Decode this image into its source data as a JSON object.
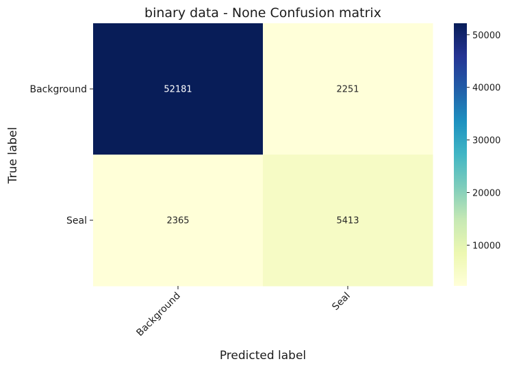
{
  "chart_data": {
    "type": "heatmap",
    "title": "binary data - None Confusion matrix",
    "xlabel": "Predicted label",
    "ylabel": "True label",
    "x_categories": [
      "Background",
      "Seal"
    ],
    "y_categories": [
      "Background",
      "Seal"
    ],
    "values": [
      [
        52181,
        2251
      ],
      [
        2365,
        5413
      ]
    ],
    "colormap": "YlGnBu",
    "color_range": [
      2251,
      52181
    ],
    "colorbar_ticks": [
      10000,
      20000,
      30000,
      40000,
      50000
    ],
    "colorbar_tick_labels": [
      "10000",
      "20000",
      "30000",
      "40000",
      "50000"
    ],
    "colors": {
      "low": "#ffffd9",
      "high": "#081d58"
    }
  }
}
